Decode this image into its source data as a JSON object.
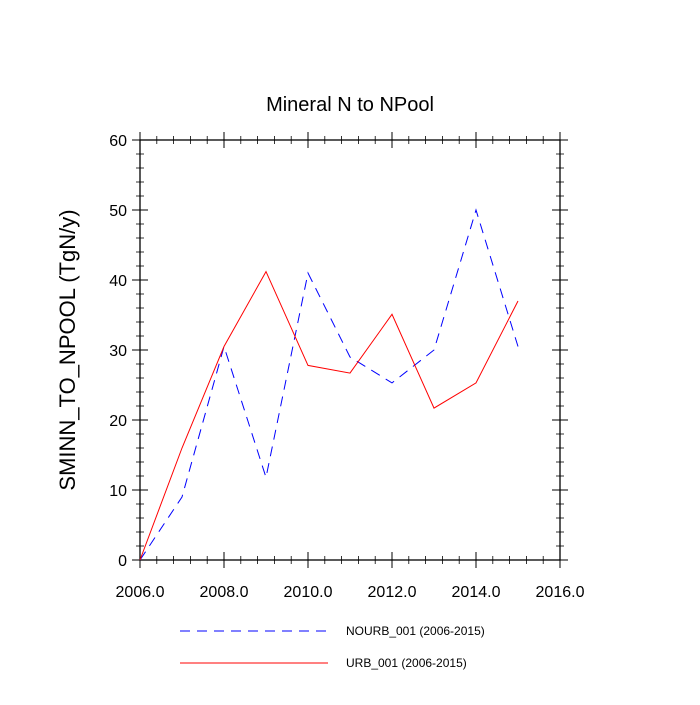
{
  "chart_data": {
    "type": "line",
    "title": "Mineral N to NPool",
    "xlabel": "",
    "ylabel": "SMINN_TO_NPOOL  (TgN/y)",
    "xlim": [
      2006,
      2016
    ],
    "ylim": [
      0,
      60
    ],
    "x_ticks": [
      2006,
      2008,
      2010,
      2012,
      2014,
      2016
    ],
    "x_tick_labels": [
      "2006.0",
      "2008.0",
      "2010.0",
      "2012.0",
      "2014.0",
      "2016.0"
    ],
    "y_ticks": [
      0,
      10,
      20,
      30,
      40,
      50,
      60
    ],
    "y_tick_labels": [
      "0",
      "10",
      "20",
      "30",
      "40",
      "50",
      "60"
    ],
    "grid": false,
    "legend_position": "bottom",
    "series": [
      {
        "name": "NOURB_001 (2006-2015)",
        "color": "#0000ff",
        "style": "dashed",
        "x": [
          2006,
          2007,
          2008,
          2009,
          2010,
          2011,
          2012,
          2013,
          2014,
          2015
        ],
        "y": [
          0,
          9,
          30.5,
          11.8,
          41,
          29,
          25.3,
          30,
          50,
          30.5
        ]
      },
      {
        "name": "URB_001 (2006-2015)",
        "color": "#ff0000",
        "style": "solid",
        "x": [
          2006,
          2007,
          2008,
          2009,
          2010,
          2011,
          2012,
          2013,
          2014,
          2015
        ],
        "y": [
          0,
          16,
          30.5,
          41.2,
          27.8,
          26.7,
          35.1,
          21.7,
          25.3,
          37
        ]
      }
    ]
  }
}
